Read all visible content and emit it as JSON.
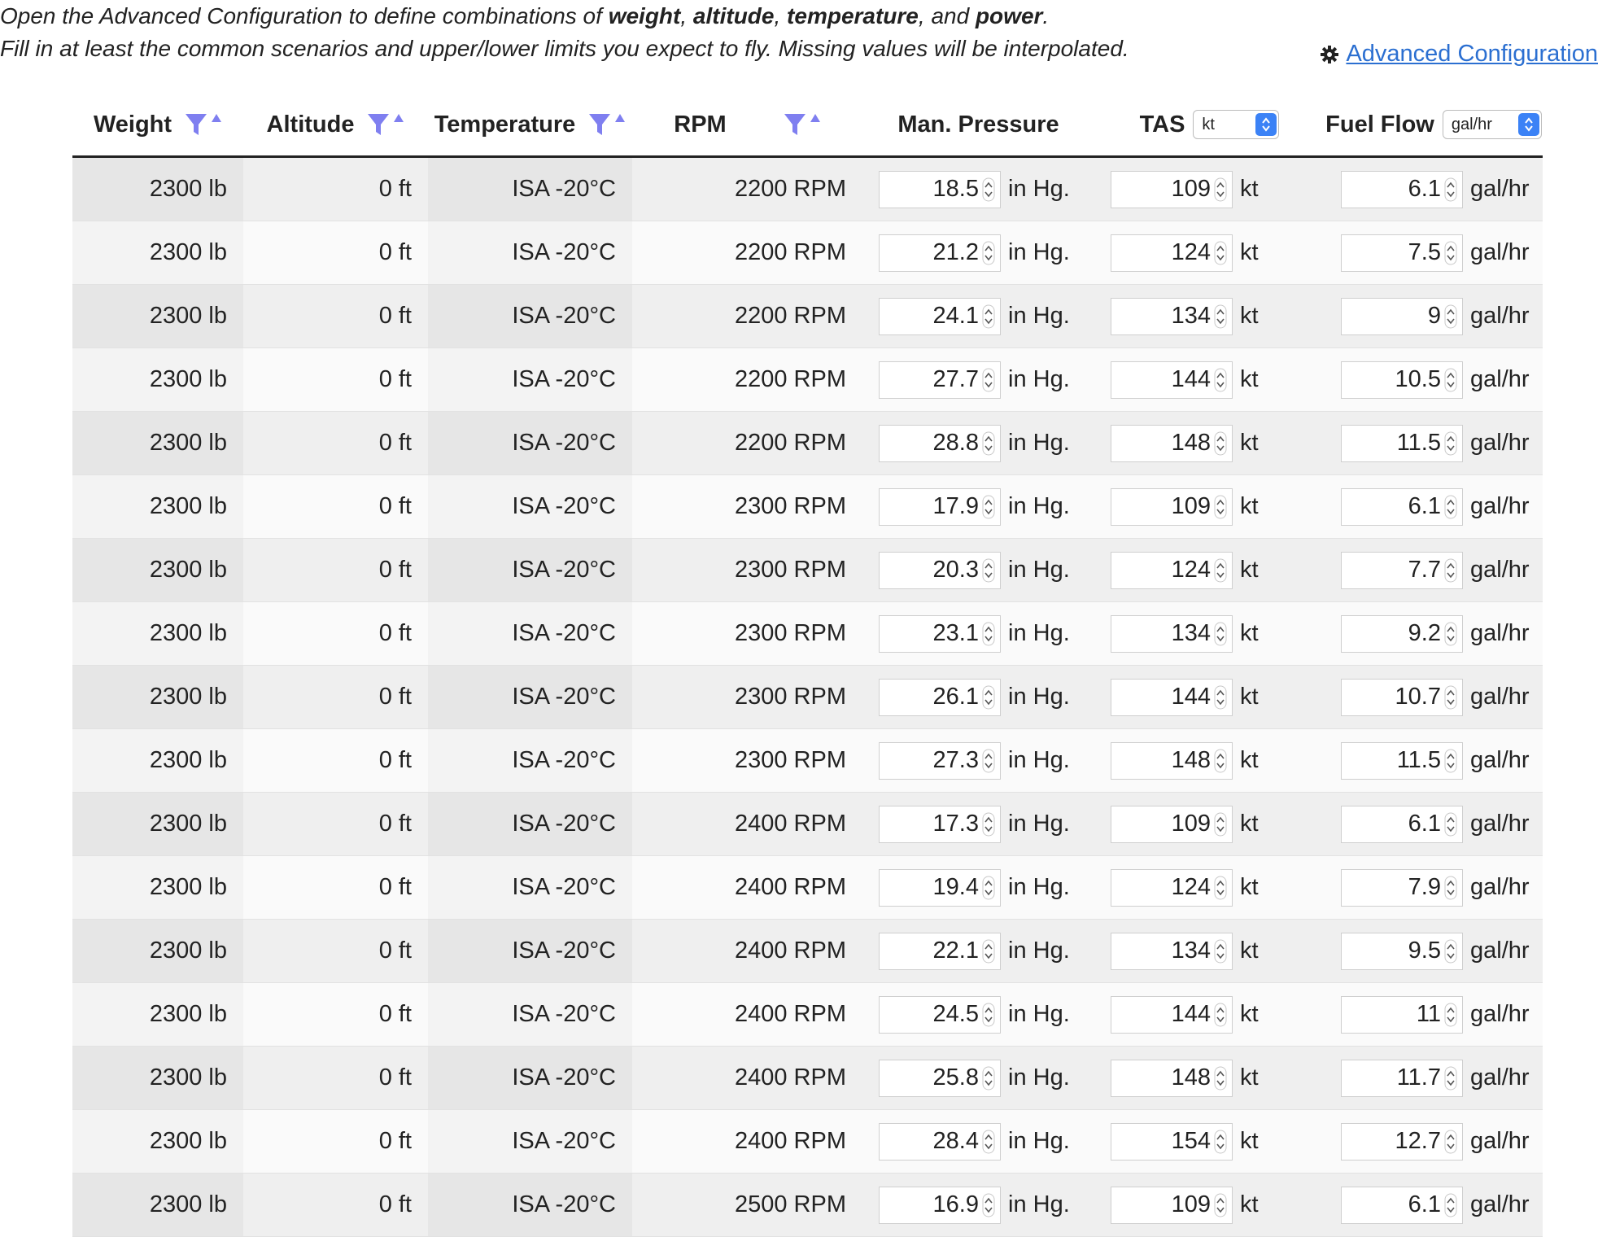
{
  "intro": {
    "line1": [
      {
        "t": "Open the Advanced Configuration to define combinations of ",
        "b": false
      },
      {
        "t": "weight",
        "b": true
      },
      {
        "t": ", ",
        "b": false
      },
      {
        "t": "altitude",
        "b": true
      },
      {
        "t": ", ",
        "b": false
      },
      {
        "t": "temperature",
        "b": true
      },
      {
        "t": ", and ",
        "b": false
      },
      {
        "t": "power",
        "b": true
      },
      {
        "t": ".",
        "b": false
      }
    ],
    "line2": "Fill in at least the common scenarios and upper/lower limits you expect to fly. Missing values will be interpolated."
  },
  "advanced_link": {
    "label": "Advanced Configuration",
    "icon": "gear-icon"
  },
  "colors": {
    "accent": "#2b6fd1",
    "filter_icon": "#7f7ff0",
    "select_tab": "#3b82f6"
  },
  "table": {
    "headers": {
      "weight": "Weight",
      "altitude": "Altitude",
      "temperature": "Temperature",
      "rpm": "RPM",
      "man_pressure": "Man. Pressure",
      "tas": "TAS",
      "fuel_flow": "Fuel Flow"
    },
    "tas_unit_select": "kt",
    "fuel_unit_select": "gal/hr",
    "units": {
      "man_pressure": "in Hg.",
      "tas": "kt",
      "fuel_flow": "gal/hr"
    },
    "rows": [
      {
        "weight": "2300 lb",
        "altitude": "0 ft",
        "temperature": "ISA -20°C",
        "rpm": "2200 RPM",
        "man_pressure": "18.5",
        "tas": "109",
        "fuel_flow": "6.1"
      },
      {
        "weight": "2300 lb",
        "altitude": "0 ft",
        "temperature": "ISA -20°C",
        "rpm": "2200 RPM",
        "man_pressure": "21.2",
        "tas": "124",
        "fuel_flow": "7.5"
      },
      {
        "weight": "2300 lb",
        "altitude": "0 ft",
        "temperature": "ISA -20°C",
        "rpm": "2200 RPM",
        "man_pressure": "24.1",
        "tas": "134",
        "fuel_flow": "9"
      },
      {
        "weight": "2300 lb",
        "altitude": "0 ft",
        "temperature": "ISA -20°C",
        "rpm": "2200 RPM",
        "man_pressure": "27.7",
        "tas": "144",
        "fuel_flow": "10.5"
      },
      {
        "weight": "2300 lb",
        "altitude": "0 ft",
        "temperature": "ISA -20°C",
        "rpm": "2200 RPM",
        "man_pressure": "28.8",
        "tas": "148",
        "fuel_flow": "11.5"
      },
      {
        "weight": "2300 lb",
        "altitude": "0 ft",
        "temperature": "ISA -20°C",
        "rpm": "2300 RPM",
        "man_pressure": "17.9",
        "tas": "109",
        "fuel_flow": "6.1"
      },
      {
        "weight": "2300 lb",
        "altitude": "0 ft",
        "temperature": "ISA -20°C",
        "rpm": "2300 RPM",
        "man_pressure": "20.3",
        "tas": "124",
        "fuel_flow": "7.7"
      },
      {
        "weight": "2300 lb",
        "altitude": "0 ft",
        "temperature": "ISA -20°C",
        "rpm": "2300 RPM",
        "man_pressure": "23.1",
        "tas": "134",
        "fuel_flow": "9.2"
      },
      {
        "weight": "2300 lb",
        "altitude": "0 ft",
        "temperature": "ISA -20°C",
        "rpm": "2300 RPM",
        "man_pressure": "26.1",
        "tas": "144",
        "fuel_flow": "10.7"
      },
      {
        "weight": "2300 lb",
        "altitude": "0 ft",
        "temperature": "ISA -20°C",
        "rpm": "2300 RPM",
        "man_pressure": "27.3",
        "tas": "148",
        "fuel_flow": "11.5"
      },
      {
        "weight": "2300 lb",
        "altitude": "0 ft",
        "temperature": "ISA -20°C",
        "rpm": "2400 RPM",
        "man_pressure": "17.3",
        "tas": "109",
        "fuel_flow": "6.1"
      },
      {
        "weight": "2300 lb",
        "altitude": "0 ft",
        "temperature": "ISA -20°C",
        "rpm": "2400 RPM",
        "man_pressure": "19.4",
        "tas": "124",
        "fuel_flow": "7.9"
      },
      {
        "weight": "2300 lb",
        "altitude": "0 ft",
        "temperature": "ISA -20°C",
        "rpm": "2400 RPM",
        "man_pressure": "22.1",
        "tas": "134",
        "fuel_flow": "9.5"
      },
      {
        "weight": "2300 lb",
        "altitude": "0 ft",
        "temperature": "ISA -20°C",
        "rpm": "2400 RPM",
        "man_pressure": "24.5",
        "tas": "144",
        "fuel_flow": "11"
      },
      {
        "weight": "2300 lb",
        "altitude": "0 ft",
        "temperature": "ISA -20°C",
        "rpm": "2400 RPM",
        "man_pressure": "25.8",
        "tas": "148",
        "fuel_flow": "11.7"
      },
      {
        "weight": "2300 lb",
        "altitude": "0 ft",
        "temperature": "ISA -20°C",
        "rpm": "2400 RPM",
        "man_pressure": "28.4",
        "tas": "154",
        "fuel_flow": "12.7"
      },
      {
        "weight": "2300 lb",
        "altitude": "0 ft",
        "temperature": "ISA -20°C",
        "rpm": "2500 RPM",
        "man_pressure": "16.9",
        "tas": "109",
        "fuel_flow": "6.1"
      }
    ]
  }
}
